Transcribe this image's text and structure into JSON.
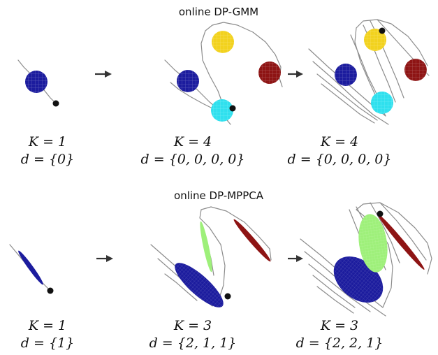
{
  "rows": [
    {
      "title": "online DP-GMM",
      "panels": [
        {
          "k_label": "K = 1",
          "d_label": "d = {0}"
        },
        {
          "k_label": "K = 4",
          "d_label": "d = {0, 0, 0, 0}"
        },
        {
          "k_label": "K = 4",
          "d_label": "d = {0, 0, 0, 0}"
        }
      ]
    },
    {
      "title": "online DP-MPPCA",
      "panels": [
        {
          "k_label": "K = 1",
          "d_label": "d = {1}"
        },
        {
          "k_label": "K = 3",
          "d_label": "d = {2, 1, 1}"
        },
        {
          "k_label": "K = 3",
          "d_label": "d = {2, 2, 1}"
        }
      ]
    }
  ],
  "colors": {
    "blue": "#1c1c9e",
    "yellow": "#f2d21e",
    "red": "#8e1414",
    "cyan": "#2fe0ee",
    "green": "#9ef07a",
    "trajectory": "#8c8c8c",
    "point": "#111111",
    "arrow": "#333333"
  }
}
